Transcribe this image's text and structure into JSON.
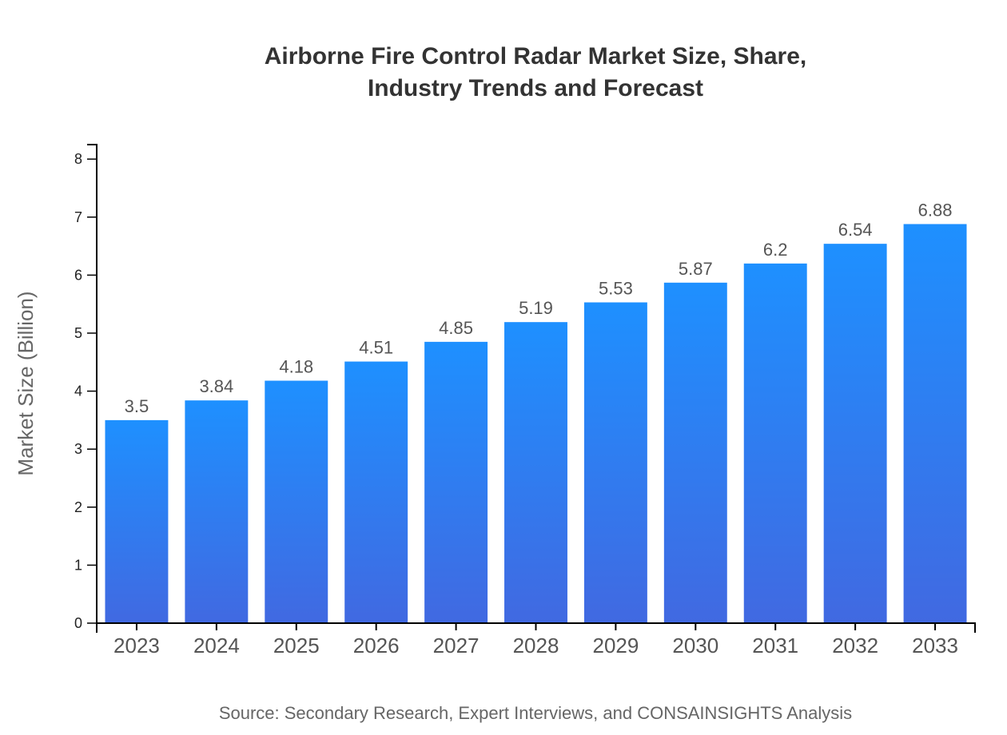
{
  "chart_data": {
    "type": "bar",
    "title": [
      "Airborne Fire Control Radar Market Size, Share,",
      "Industry Trends and Forecast"
    ],
    "xlabel": "",
    "ylabel": "Market Size (Billion)",
    "categories": [
      "2023",
      "2024",
      "2025",
      "2026",
      "2027",
      "2028",
      "2029",
      "2030",
      "2031",
      "2032",
      "2033"
    ],
    "values": [
      3.5,
      3.84,
      4.18,
      4.51,
      4.85,
      5.19,
      5.53,
      5.87,
      6.2,
      6.54,
      6.88
    ],
    "ylim": [
      0,
      8.25
    ],
    "yticks": [
      0,
      1,
      2,
      3,
      4,
      5,
      6,
      7,
      8
    ],
    "grid": false,
    "colors": {
      "bar_top": "#1e90ff",
      "bar_bottom": "#4169e1"
    },
    "source": "Source: Secondary Research, Expert Interviews, and CONSAINSIGHTS Analysis"
  }
}
